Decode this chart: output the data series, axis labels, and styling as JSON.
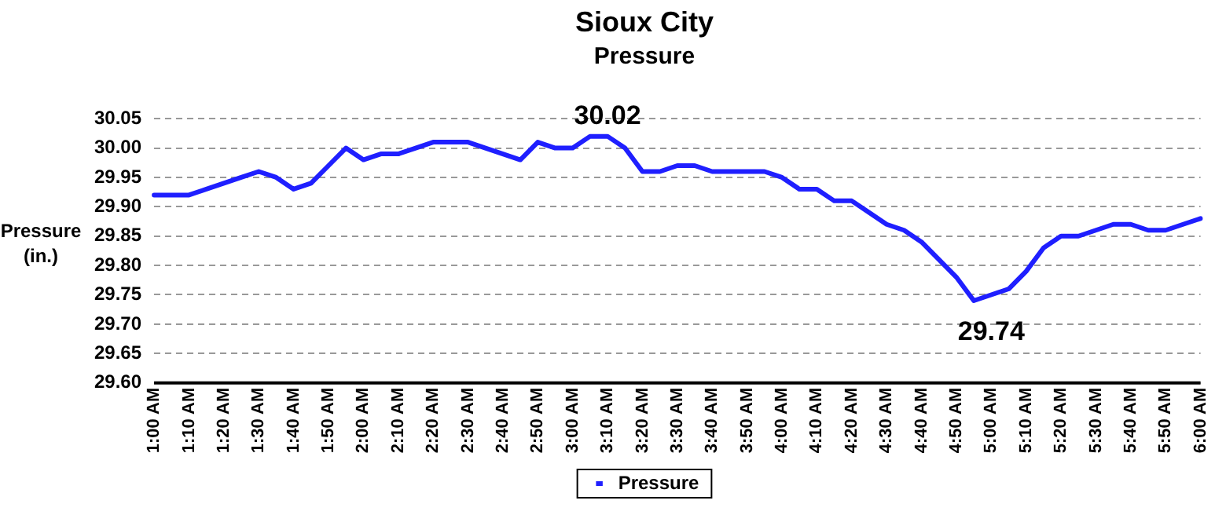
{
  "chart_data": {
    "type": "line",
    "title": "Sioux City",
    "subtitle": "Pressure",
    "ylabel": "Pressure\n(in.)",
    "categories": [
      "1:00 AM",
      null,
      "1:10 AM",
      null,
      "1:20 AM",
      null,
      "1:30 AM",
      null,
      "1:40 AM",
      null,
      "1:50 AM",
      null,
      "2:00 AM",
      null,
      "2:10 AM",
      null,
      "2:20 AM",
      null,
      "2:30 AM",
      null,
      "2:40 AM",
      null,
      "2:50 AM",
      null,
      "3:00 AM",
      null,
      "3:10 AM",
      null,
      "3:20 AM",
      null,
      "3:30 AM",
      null,
      "3:40 AM",
      null,
      "3:50 AM",
      null,
      "4:00 AM",
      null,
      "4:10 AM",
      null,
      "4:20 AM",
      null,
      "4:30 AM",
      null,
      "4:40 AM",
      null,
      "4:50 AM",
      null,
      "5:00 AM",
      null,
      "5:10 AM",
      null,
      "5:20 AM",
      null,
      "5:30 AM",
      null,
      "5:40 AM",
      null,
      "5:50 AM",
      null,
      "6:00 AM"
    ],
    "series": [
      {
        "name": "Pressure",
        "color": "#1f1fff",
        "values": [
          29.92,
          29.92,
          29.92,
          29.93,
          29.94,
          29.95,
          29.96,
          29.95,
          29.93,
          29.94,
          29.97,
          30.0,
          29.98,
          29.99,
          29.99,
          30.0,
          30.01,
          30.01,
          30.01,
          30.0,
          29.99,
          29.98,
          30.01,
          30.0,
          30.0,
          30.02,
          30.02,
          30.0,
          29.96,
          29.96,
          29.97,
          29.97,
          29.96,
          29.96,
          29.96,
          29.96,
          29.95,
          29.93,
          29.93,
          29.91,
          29.91,
          29.89,
          29.87,
          29.86,
          29.84,
          29.81,
          29.78,
          29.74,
          29.75,
          29.76,
          29.79,
          29.83,
          29.85,
          29.85,
          29.86,
          29.87,
          29.87,
          29.86,
          29.86,
          29.87,
          29.88
        ]
      }
    ],
    "ylim": [
      29.6,
      30.05
    ],
    "yticks": [
      {
        "value": 29.6,
        "label": "29.60"
      },
      {
        "value": 29.65,
        "label": "29.65"
      },
      {
        "value": 29.7,
        "label": "29.70"
      },
      {
        "value": 29.75,
        "label": "29.75"
      },
      {
        "value": 29.8,
        "label": "29.80"
      },
      {
        "value": 29.85,
        "label": "29.85"
      },
      {
        "value": 29.9,
        "label": "29.90"
      },
      {
        "value": 29.95,
        "label": "29.95"
      },
      {
        "value": 30,
        "label": "30.00"
      },
      {
        "value": 30.05,
        "label": "30.05"
      }
    ],
    "annotations": [
      {
        "text": "30.02",
        "x": "3:10 AM",
        "y": 30.02
      },
      {
        "text": "29.74",
        "x": "5:00 AM",
        "y": 29.74
      }
    ],
    "grid": "y",
    "legend": "bottom",
    "marker": "none",
    "line_style": "solid"
  }
}
